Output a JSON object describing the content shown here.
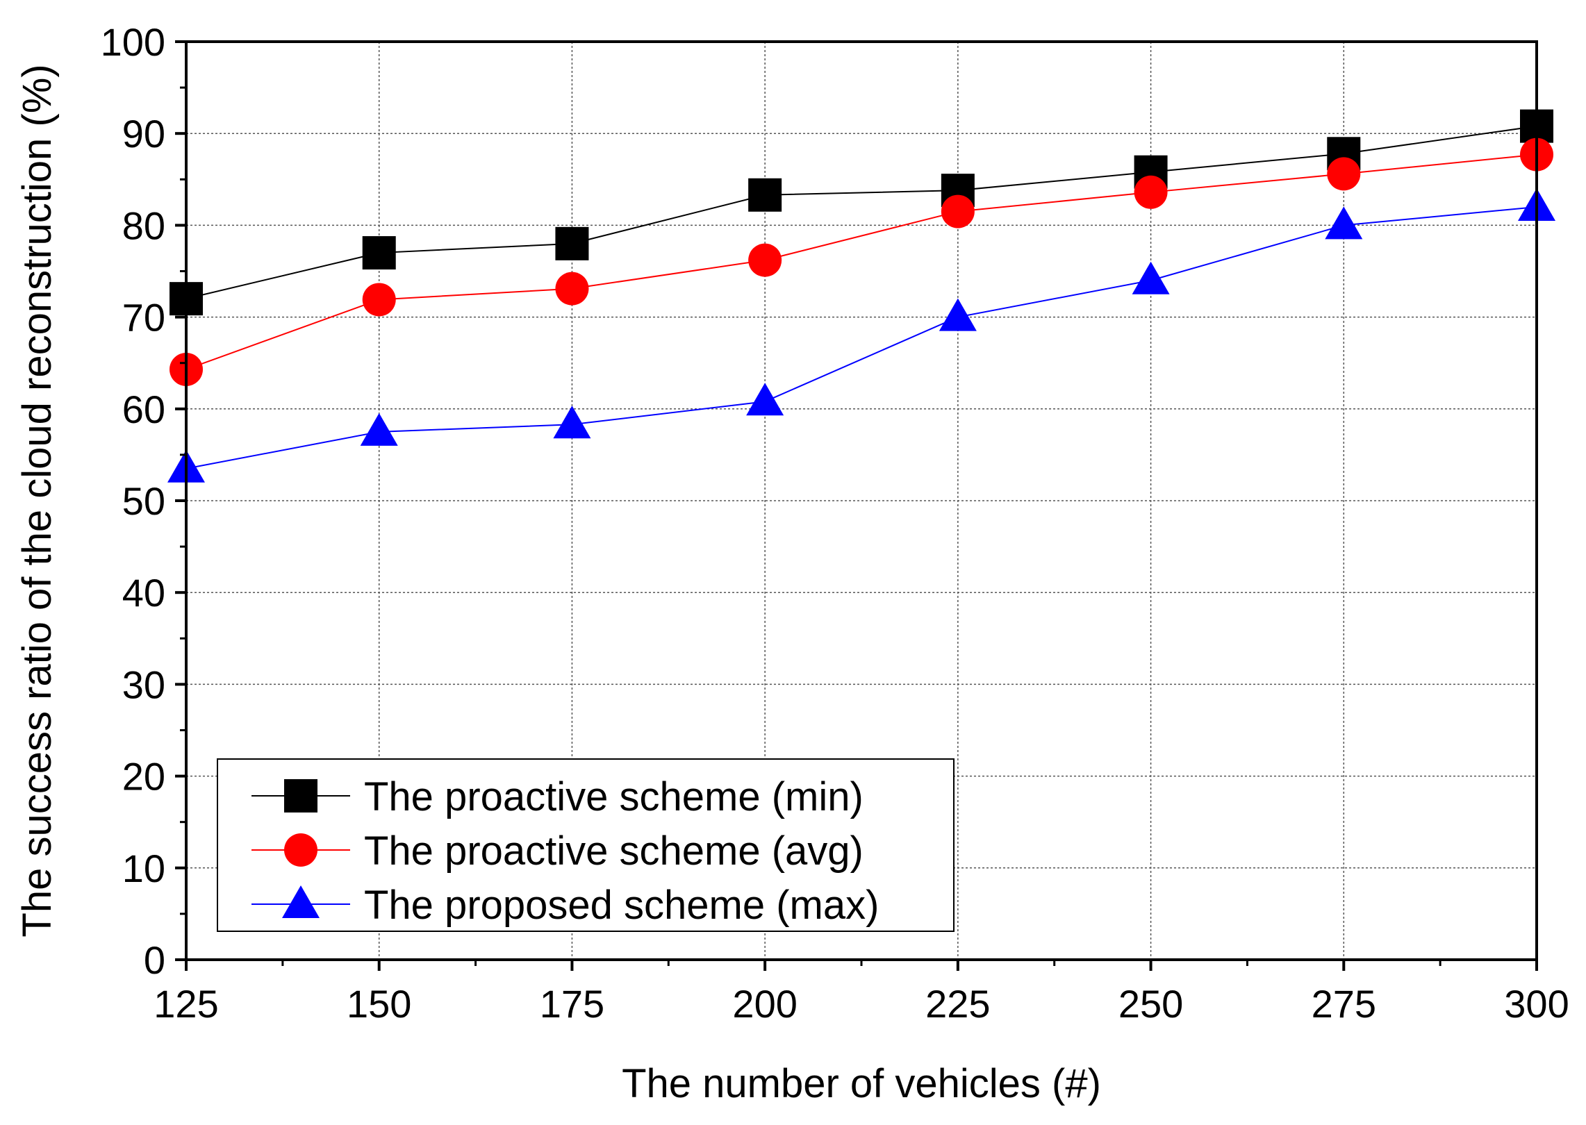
{
  "chart_data": {
    "type": "line",
    "title": "",
    "xlabel": "The number of vehicles (#)",
    "ylabel": "The success ratio of the cloud reconstruction (%)",
    "xlim": [
      125,
      300
    ],
    "ylim": [
      0,
      100
    ],
    "x_ticks": [
      125,
      150,
      175,
      200,
      225,
      250,
      275,
      300
    ],
    "y_ticks": [
      0,
      10,
      20,
      30,
      40,
      50,
      60,
      70,
      80,
      90,
      100
    ],
    "grid": true,
    "legend_position": "bottom-left",
    "x": [
      125,
      150,
      175,
      200,
      225,
      250,
      275,
      300
    ],
    "series": [
      {
        "name": "The proactive scheme (min)",
        "color": "#000000",
        "marker": "square",
        "values": [
          72,
          77,
          78,
          83.3,
          83.8,
          85.8,
          87.8,
          90.8
        ]
      },
      {
        "name": "The proactive scheme (avg)",
        "color": "#ff0000",
        "marker": "circle",
        "values": [
          64.3,
          71.9,
          73.1,
          76.2,
          81.5,
          83.6,
          85.6,
          87.7
        ]
      },
      {
        "name": "The proposed scheme (max)",
        "color": "#0000ff",
        "marker": "triangle",
        "values": [
          53.5,
          57.5,
          58.3,
          60.8,
          70,
          74,
          80,
          82
        ]
      }
    ]
  }
}
